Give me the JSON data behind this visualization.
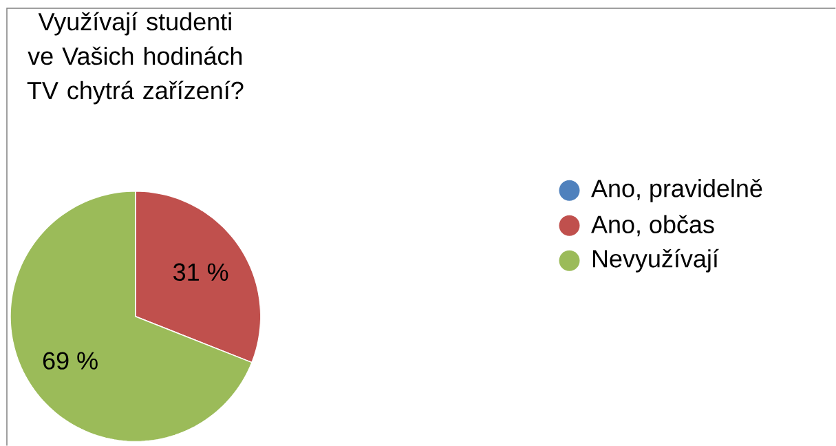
{
  "chart_data": {
    "type": "pie",
    "title": "Využívají studenti ve Vašich hodinách TV chytrá zařízení?",
    "categories": [
      "Ano, pravidelně",
      "Ano, občas",
      "Nevyužívají"
    ],
    "values": [
      0,
      31,
      69
    ],
    "colors": [
      "#4f81bd",
      "#c0504d",
      "#9bbb59"
    ],
    "value_labels": [
      null,
      "31 %",
      "69 %"
    ],
    "legend": "right"
  }
}
